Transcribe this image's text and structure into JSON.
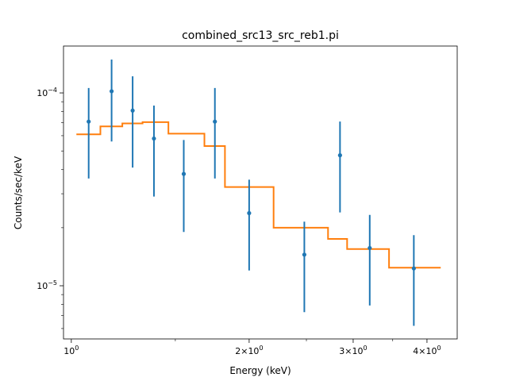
{
  "chart_data": {
    "type": "scatter",
    "title": "combined_src13_src_reb1.pi",
    "xlabel": "Energy (keV)",
    "ylabel": "Counts/sec/keV",
    "xscale": "log",
    "yscale": "log",
    "xlim": [
      0.97,
      4.5
    ],
    "ylim": [
      5.3e-06,
      0.000175
    ],
    "x_major_ticks": [
      {
        "value": 1,
        "base": "10",
        "exp": "0",
        "mant": ""
      },
      {
        "value": 2,
        "base": "10",
        "exp": "0",
        "mant": "2×"
      },
      {
        "value": 3,
        "base": "10",
        "exp": "0",
        "mant": "3×"
      },
      {
        "value": 4,
        "base": "10",
        "exp": "0",
        "mant": "4×"
      }
    ],
    "x_minor_ticks": [
      1.5,
      2.5,
      3.5
    ],
    "y_major_ticks": [
      {
        "value": 1e-05,
        "base": "10",
        "exp": "−5"
      },
      {
        "value": 0.0001,
        "base": "10",
        "exp": "−4"
      }
    ],
    "y_minor_ticks": [
      6e-06,
      7e-06,
      8e-06,
      9e-06,
      2e-05,
      3e-05,
      4e-05,
      5e-05,
      6e-05,
      7e-05,
      8e-05,
      9e-05
    ],
    "colors": {
      "data": "#1f77b4",
      "model": "#ff7f0e"
    },
    "series": [
      {
        "kind": "data",
        "points": [
          {
            "x": 1.07,
            "y": 7.1e-05,
            "ylow": 3.6e-05,
            "yhigh": 0.000106
          },
          {
            "x": 1.17,
            "y": 0.000102,
            "ylow": 5.6e-05,
            "yhigh": 0.000149
          },
          {
            "x": 1.27,
            "y": 8.1e-05,
            "ylow": 4.1e-05,
            "yhigh": 0.000122
          },
          {
            "x": 1.38,
            "y": 5.8e-05,
            "ylow": 2.9e-05,
            "yhigh": 8.6e-05
          },
          {
            "x": 1.55,
            "y": 3.8e-05,
            "ylow": 1.9e-05,
            "yhigh": 5.7e-05
          },
          {
            "x": 1.75,
            "y": 7.1e-05,
            "ylow": 3.6e-05,
            "yhigh": 0.000106
          },
          {
            "x": 2.0,
            "y": 2.38e-05,
            "ylow": 1.2e-05,
            "yhigh": 3.55e-05
          },
          {
            "x": 2.48,
            "y": 1.45e-05,
            "ylow": 7.3e-06,
            "yhigh": 2.15e-05
          },
          {
            "x": 2.85,
            "y": 4.75e-05,
            "ylow": 2.4e-05,
            "yhigh": 7.1e-05
          },
          {
            "x": 3.2,
            "y": 1.57e-05,
            "ylow": 7.9e-06,
            "yhigh": 2.33e-05
          },
          {
            "x": 3.8,
            "y": 1.23e-05,
            "ylow": 6.2e-06,
            "yhigh": 1.83e-05
          }
        ]
      },
      {
        "kind": "model",
        "steps": [
          {
            "x0": 1.02,
            "x1": 1.12,
            "y": 6.1e-05
          },
          {
            "x0": 1.12,
            "x1": 1.22,
            "y": 6.7e-05
          },
          {
            "x0": 1.22,
            "x1": 1.32,
            "y": 6.95e-05
          },
          {
            "x0": 1.32,
            "x1": 1.46,
            "y": 7.05e-05
          },
          {
            "x0": 1.46,
            "x1": 1.68,
            "y": 6.15e-05
          },
          {
            "x0": 1.68,
            "x1": 1.82,
            "y": 5.3e-05
          },
          {
            "x0": 1.82,
            "x1": 2.2,
            "y": 3.25e-05
          },
          {
            "x0": 2.2,
            "x1": 2.72,
            "y": 2e-05
          },
          {
            "x0": 2.72,
            "x1": 2.93,
            "y": 1.75e-05
          },
          {
            "x0": 2.93,
            "x1": 3.45,
            "y": 1.55e-05
          },
          {
            "x0": 3.45,
            "x1": 4.22,
            "y": 1.24e-05
          }
        ]
      }
    ]
  }
}
